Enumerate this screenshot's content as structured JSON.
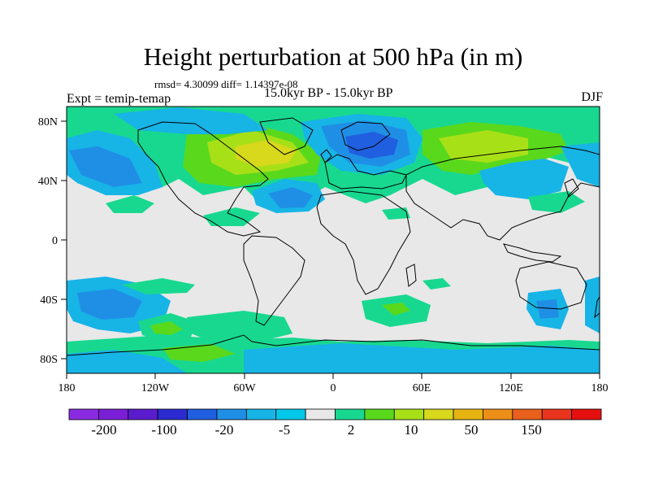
{
  "title": "Height perturbation at 500 hPa (in m)",
  "stats_text": "rmsd= 4.30099 diff= 1.14397e-08",
  "period_text": "15.0kyr BP - 15.0kyr BP",
  "expt_text": "Expt = temip-temap",
  "season_text": "DJF",
  "colors": {
    "background_field": "#e8e8e8",
    "coast": "#000000"
  },
  "chart_data": {
    "type": "heatmap",
    "x_ticks": [
      "180",
      "120W",
      "60W",
      "0",
      "60E",
      "120E",
      "180"
    ],
    "y_ticks": [
      "80N",
      "40N",
      "0",
      "40S",
      "80S"
    ],
    "colorbar": {
      "colors": [
        "#8a2be2",
        "#7b1fd6",
        "#5a1ccc",
        "#2b2bd0",
        "#1f5fe0",
        "#1f8fe6",
        "#17b4e6",
        "#00c8e8",
        "#e8e8e8",
        "#18d890",
        "#5ad81c",
        "#a8e018",
        "#d8d81c",
        "#e6b410",
        "#ec8e18",
        "#e8601c",
        "#e8341c",
        "#e60f0f"
      ],
      "labels": [
        "-200",
        "-100",
        "-20",
        "-5",
        "2",
        "10",
        "50",
        "150"
      ]
    },
    "anomaly_regions": [
      {
        "name": "n-pacific-neg",
        "sign": "neg",
        "level": "moderate"
      },
      {
        "name": "n-america-pos",
        "sign": "pos",
        "level": "strong"
      },
      {
        "name": "n-atlantic-neg",
        "sign": "neg",
        "level": "moderate"
      },
      {
        "name": "eurasia-neg",
        "sign": "neg",
        "level": "strong"
      },
      {
        "name": "siberia-pos",
        "sign": "pos",
        "level": "moderate"
      },
      {
        "name": "s-pacific-neg",
        "sign": "neg",
        "level": "weak"
      },
      {
        "name": "s-atlantic-pos",
        "sign": "pos",
        "level": "weak"
      },
      {
        "name": "antarctic-neg",
        "sign": "neg",
        "level": "weak"
      }
    ]
  }
}
